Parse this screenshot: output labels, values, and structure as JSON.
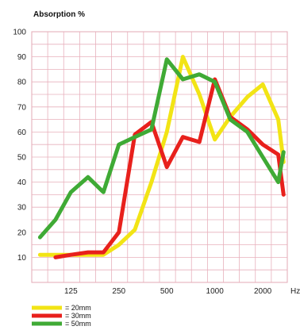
{
  "chart_data": {
    "type": "line",
    "title": "Absorption %",
    "xlabel": "",
    "x_unit": "Hz",
    "ylabel": "",
    "x_scale": "log",
    "xlim": [
      71,
      2850
    ],
    "ylim": [
      0,
      100
    ],
    "y_ticks": [
      10,
      20,
      30,
      40,
      50,
      60,
      70,
      80,
      90,
      100
    ],
    "x_ticks": [
      125,
      250,
      500,
      1000,
      2000
    ],
    "x_tick_labels": [
      "125",
      "250",
      "500",
      "1000",
      "2000"
    ],
    "grid": true,
    "legend_position": "bottom-left",
    "series": [
      {
        "name": "= 20mm",
        "color": "#f2e415",
        "points": [
          [
            80,
            11
          ],
          [
            100,
            11
          ],
          [
            125,
            11
          ],
          [
            160,
            11
          ],
          [
            200,
            11
          ],
          [
            250,
            15
          ],
          [
            315,
            21
          ],
          [
            400,
            40
          ],
          [
            500,
            60
          ],
          [
            630,
            90
          ],
          [
            800,
            75
          ],
          [
            1000,
            57
          ],
          [
            1250,
            66
          ],
          [
            1600,
            74
          ],
          [
            2000,
            79
          ],
          [
            2500,
            65
          ],
          [
            2700,
            48
          ]
        ]
      },
      {
        "name": "= 30mm",
        "color": "#e8201c",
        "points": [
          [
            100,
            10
          ],
          [
            125,
            11
          ],
          [
            160,
            12
          ],
          [
            200,
            12
          ],
          [
            250,
            20
          ],
          [
            315,
            59
          ],
          [
            400,
            64
          ],
          [
            500,
            46
          ],
          [
            630,
            58
          ],
          [
            800,
            56
          ],
          [
            1000,
            81
          ],
          [
            1250,
            66
          ],
          [
            1600,
            61
          ],
          [
            2000,
            55
          ],
          [
            2500,
            51
          ],
          [
            2700,
            35
          ]
        ]
      },
      {
        "name": "= 50mm",
        "color": "#3faa35",
        "points": [
          [
            80,
            18
          ],
          [
            100,
            25
          ],
          [
            125,
            36
          ],
          [
            160,
            42
          ],
          [
            200,
            36
          ],
          [
            250,
            55
          ],
          [
            315,
            58
          ],
          [
            400,
            61
          ],
          [
            500,
            89
          ],
          [
            630,
            81
          ],
          [
            800,
            83
          ],
          [
            1000,
            80
          ],
          [
            1250,
            65
          ],
          [
            1600,
            60
          ],
          [
            2000,
            50
          ],
          [
            2500,
            40
          ],
          [
            2700,
            52
          ]
        ]
      }
    ]
  }
}
